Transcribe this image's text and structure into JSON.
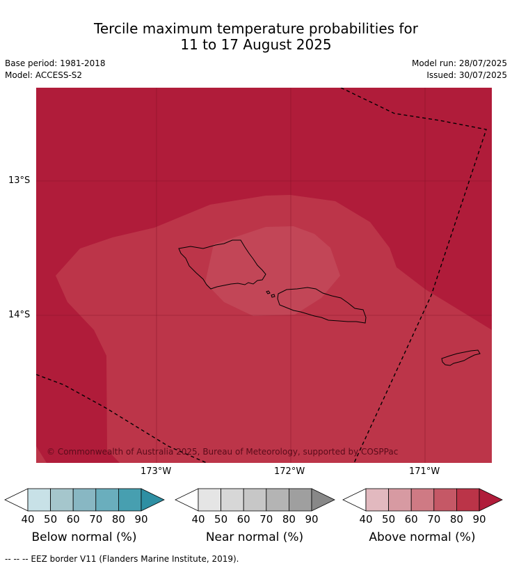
{
  "title_line1": "Tercile maximum temperature probabilities for",
  "title_line2": "11 to 17 August 2025",
  "base_period": "Base period: 1981-2018",
  "model": "Model: ACCESS-S2",
  "model_run": "Model run: 28/07/2025",
  "issued": "Issued: 30/07/2025",
  "copyright": "© Commonwealth of Australia 2025, Bureau of Meteorology, supported by COSPPac",
  "lat_labels": [
    "13°S",
    "14°S"
  ],
  "lon_labels": [
    "173°W",
    "172°W",
    "171°W"
  ],
  "legends": [
    {
      "name": "Below normal (%)",
      "ticks": [
        "40",
        "50",
        "60",
        "70",
        "80",
        "90"
      ],
      "colors": [
        "#c8e1e7",
        "#a5c6cc",
        "#88b7c3",
        "#6aaebd",
        "#479fb0",
        "#2e8fa3"
      ]
    },
    {
      "name": "Near normal (%)",
      "ticks": [
        "40",
        "50",
        "60",
        "70",
        "80",
        "90"
      ],
      "colors": [
        "#e5e5e5",
        "#d7d7d7",
        "#c7c7c7",
        "#b4b4b4",
        "#9f9f9f",
        "#888888"
      ]
    },
    {
      "name": "Above normal (%)",
      "ticks": [
        "40",
        "50",
        "60",
        "70",
        "80",
        "90"
      ],
      "colors": [
        "#e2b9bf",
        "#d79aa2",
        "#cf7a84",
        "#c55866",
        "#bb3448",
        "#b01c3a"
      ]
    }
  ],
  "footer": "--  --  -- EEZ border V11 (Flanders Marine Institute, 2019).",
  "colors": {
    "above_90": "#b01c3a",
    "above_80": "#bc3549",
    "above_70": "#c24657",
    "land_outline": "#000000"
  }
}
